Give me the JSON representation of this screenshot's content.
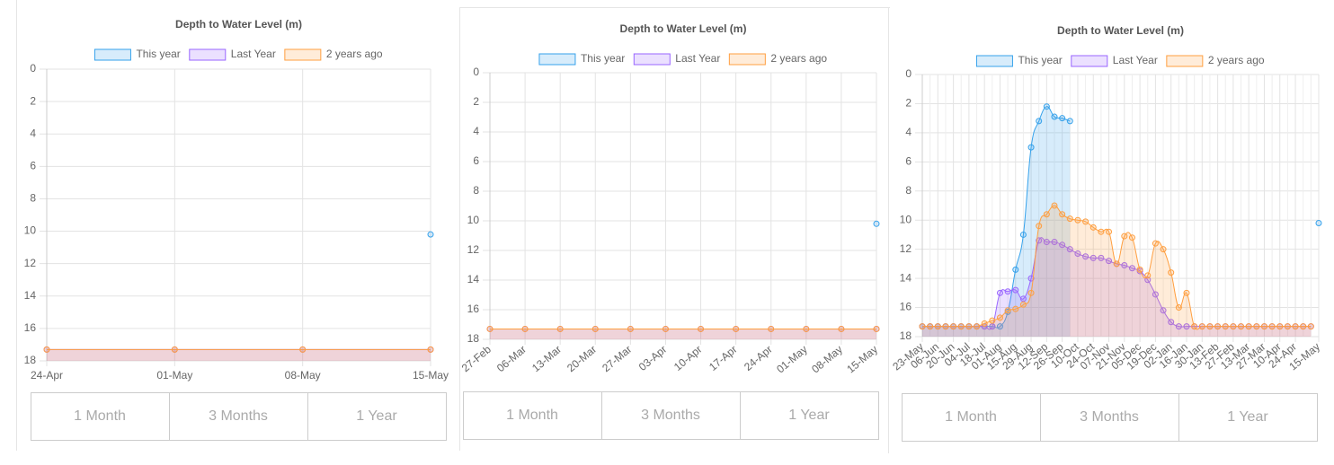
{
  "chart_data": [
    {
      "type": "line",
      "title": "Depth to Water Level (m)",
      "categories": [
        "24-Apr",
        "01-May",
        "08-May",
        "15-May"
      ],
      "series": [
        {
          "name": "This year",
          "color": "#36a2eb",
          "values": [
            null,
            null,
            null,
            10.2
          ]
        },
        {
          "name": "Last Year",
          "color": "#9966ff",
          "values": [
            17.3,
            17.3,
            17.3,
            17.3
          ]
        },
        {
          "name": "2 years ago",
          "color": "#ff9f40",
          "values": [
            17.3,
            17.3,
            17.3,
            17.3
          ]
        }
      ],
      "ylim": [
        0,
        18
      ],
      "yticks": [
        0,
        2,
        4,
        6,
        8,
        10,
        12,
        14,
        16,
        18
      ],
      "y_reversed": true,
      "grid": true,
      "legend": "top",
      "buttons": [
        "1 Month",
        "3 Months",
        "1 Year"
      ]
    },
    {
      "type": "line",
      "title": "Depth to Water Level (m)",
      "categories": [
        "27-Feb",
        "06-Mar",
        "13-Mar",
        "20-Mar",
        "27-Mar",
        "03-Apr",
        "10-Apr",
        "17-Apr",
        "24-Apr",
        "01-May",
        "08-May",
        "15-May"
      ],
      "series": [
        {
          "name": "This year",
          "color": "#36a2eb",
          "values": [
            null,
            null,
            null,
            null,
            null,
            null,
            null,
            null,
            null,
            null,
            null,
            10.2
          ]
        },
        {
          "name": "Last Year",
          "color": "#9966ff",
          "values": [
            17.3,
            17.3,
            17.3,
            17.3,
            17.3,
            17.3,
            17.3,
            17.3,
            17.3,
            17.3,
            17.3,
            17.3
          ]
        },
        {
          "name": "2 years ago",
          "color": "#ff9f40",
          "values": [
            17.3,
            17.3,
            17.3,
            17.3,
            17.3,
            17.3,
            17.3,
            17.3,
            17.3,
            17.3,
            17.3,
            17.3
          ]
        }
      ],
      "ylim": [
        0,
        18
      ],
      "yticks": [
        0,
        2,
        4,
        6,
        8,
        10,
        12,
        14,
        16,
        18
      ],
      "y_reversed": true,
      "grid": true,
      "legend": "top",
      "buttons": [
        "1 Month",
        "3 Months",
        "1 Year"
      ]
    },
    {
      "type": "line",
      "title": "Depth to Water Level (m)",
      "categories": [
        "23-May",
        null,
        "06-Jun",
        null,
        "20-Jun",
        null,
        "04-Jul",
        null,
        "18-Jul",
        null,
        "01-Aug",
        null,
        "15-Aug",
        null,
        "29-Aug",
        null,
        "12-Sep",
        null,
        "26-Sep",
        null,
        "10-Oct",
        null,
        "24-Oct",
        null,
        "07-Nov",
        null,
        "21-Nov",
        null,
        "05-Dec",
        null,
        "19-Dec",
        null,
        "02-Jan",
        null,
        "16-Jan",
        null,
        "30-Jan",
        null,
        "13-Feb",
        null,
        "27-Feb",
        null,
        "13-Mar",
        null,
        "27-Mar",
        null,
        "10-Apr",
        null,
        "24-Apr",
        null,
        null,
        "15-May"
      ],
      "series": [
        {
          "name": "This year",
          "color": "#36a2eb",
          "values": [
            17.3,
            17.3,
            17.3,
            17.3,
            17.3,
            17.3,
            17.3,
            17.3,
            17.3,
            17.3,
            17.3,
            16.3,
            13.4,
            11.0,
            5.0,
            3.2,
            2.2,
            2.9,
            3.0,
            3.2,
            null,
            null,
            null,
            null,
            null,
            null,
            null,
            null,
            null,
            null,
            null,
            null,
            null,
            null,
            null,
            null,
            null,
            null,
            null,
            null,
            null,
            null,
            null,
            null,
            null,
            null,
            null,
            null,
            null,
            null,
            null,
            10.2
          ]
        },
        {
          "name": "Last Year",
          "color": "#9966ff",
          "values": [
            17.3,
            17.3,
            17.3,
            17.3,
            17.3,
            17.3,
            17.3,
            17.3,
            17.3,
            17.3,
            15.0,
            14.9,
            14.8,
            15.4,
            14.0,
            11.4,
            11.5,
            11.5,
            11.7,
            12.0,
            12.3,
            12.5,
            12.6,
            12.6,
            12.8,
            13.0,
            13.1,
            13.3,
            13.5,
            14.1,
            15.1,
            16.2,
            17.0,
            17.3,
            17.3,
            17.3,
            17.3,
            17.3,
            17.3,
            17.3,
            17.3,
            17.3,
            17.3,
            17.3,
            17.3,
            17.3,
            17.3,
            17.3,
            17.3,
            17.3,
            17.3,
            null
          ]
        },
        {
          "name": "2 years ago",
          "color": "#ff9f40",
          "values": [
            17.3,
            17.3,
            17.3,
            17.3,
            17.3,
            17.3,
            17.3,
            17.3,
            17.1,
            16.9,
            16.7,
            16.2,
            16.1,
            15.8,
            15.0,
            10.4,
            9.6,
            9.0,
            9.6,
            9.9,
            10.0,
            10.1,
            10.5,
            10.8,
            10.8,
            13.0,
            11.1,
            11.2,
            13.4,
            13.8,
            11.6,
            12.0,
            13.6,
            16.0,
            15.0,
            17.3,
            17.3,
            17.3,
            17.3,
            17.3,
            17.3,
            17.3,
            17.3,
            17.3,
            17.3,
            17.3,
            17.3,
            17.3,
            17.3,
            17.3,
            17.3,
            null
          ]
        }
      ],
      "ylim": [
        0,
        18
      ],
      "yticks": [
        0,
        2,
        4,
        6,
        8,
        10,
        12,
        14,
        16,
        18
      ],
      "y_reversed": true,
      "grid": true,
      "legend": "top",
      "buttons": [
        "1 Month",
        "3 Months",
        "1 Year"
      ]
    }
  ]
}
